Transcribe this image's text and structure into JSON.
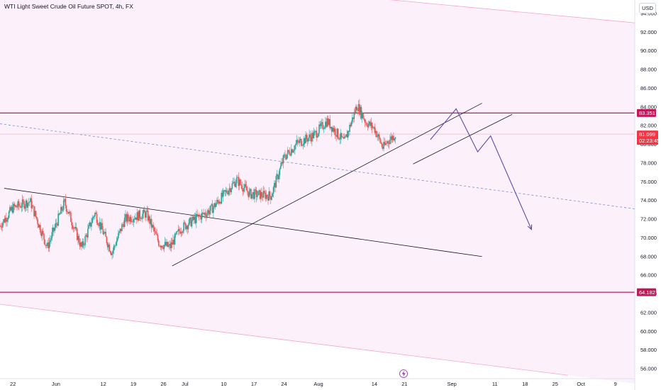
{
  "header": {
    "title": "WTI Light Sweet Crude Oil Future SPOT, 4h, FX",
    "currency_button": "USD"
  },
  "colors": {
    "channel_fill": "#fcf0fb",
    "channel_border": "#f5a6c8",
    "level_line": "#c2185b",
    "bull_candle": "#26a69a",
    "bear_candle": "#ef5350",
    "trendline": "#131722",
    "projection": "#5b4ba8",
    "midline": "#7b8ec8",
    "price_badge": "#f23645"
  },
  "chart_data": {
    "type": "candlestick",
    "title": "WTI Light Sweet Crude Oil Future SPOT, 4h, FX",
    "timeframe": "4h",
    "ylim": [
      55,
      95
    ],
    "yticks": [
      56,
      58,
      60,
      62,
      64,
      66,
      68,
      70,
      72,
      74,
      76,
      78,
      80,
      82,
      84,
      86,
      88,
      90,
      92,
      94
    ],
    "x_labels": [
      "22",
      "Jun",
      "12",
      "19",
      "26",
      "Jul",
      "10",
      "17",
      "24",
      "Aug",
      "14",
      "21",
      "Sep",
      "11",
      "18",
      "25",
      "Oct",
      "9"
    ],
    "x_label_days": [
      -10,
      0,
      11,
      18,
      25,
      30,
      39,
      46,
      53,
      61,
      74,
      81,
      92,
      102,
      109,
      116,
      122,
      130
    ],
    "xlim_days": [
      -13,
      134.5
    ],
    "candle_path_days": [
      -13,
      -10,
      -6,
      -2,
      2,
      6,
      9,
      13,
      16,
      21,
      24,
      26.5,
      29,
      32,
      36,
      42,
      45,
      50,
      53,
      56,
      60,
      63,
      67,
      70,
      72,
      74,
      76,
      77,
      79
    ],
    "candle_path_close": [
      71.3,
      73.2,
      73.9,
      69.0,
      73.8,
      68.9,
      72.7,
      68.4,
      72.0,
      72.6,
      69.4,
      69.0,
      71.0,
      71.9,
      73.0,
      76.2,
      74.7,
      74.5,
      78.6,
      80.1,
      81.0,
      82.5,
      80.2,
      84.2,
      82.4,
      81.7,
      79.6,
      80.3,
      81.1
    ],
    "levels": [
      {
        "price": 83.351,
        "label": "83.351"
      },
      {
        "price": 64.182,
        "label": "64.182"
      }
    ],
    "current_price": {
      "price": 81.099,
      "label": "81.099",
      "countdown": "02:23:45"
    },
    "channel": {
      "upper": {
        "from": [
          -13,
          99.4
        ],
        "to": [
          134.5,
          93.0
        ]
      },
      "lower": {
        "from": [
          -13,
          62.9
        ],
        "to": [
          119,
          55.3
        ]
      },
      "middle": {
        "from": [
          -13,
          82.2
        ],
        "to": [
          134.5,
          73.1
        ]
      }
    },
    "trendlines": [
      {
        "from": [
          -12,
          75.3
        ],
        "to": [
          99,
          68.0
        ]
      },
      {
        "from": [
          27,
          67.0
        ],
        "to": [
          99,
          84.4
        ]
      },
      {
        "from": [
          83,
          77.9
        ],
        "to": [
          106,
          83.2
        ]
      }
    ],
    "projection": [
      [
        87,
        80.5
      ],
      [
        93,
        83.8
      ],
      [
        98,
        79.2
      ],
      [
        101,
        80.9
      ],
      [
        110.5,
        70.9
      ]
    ]
  }
}
